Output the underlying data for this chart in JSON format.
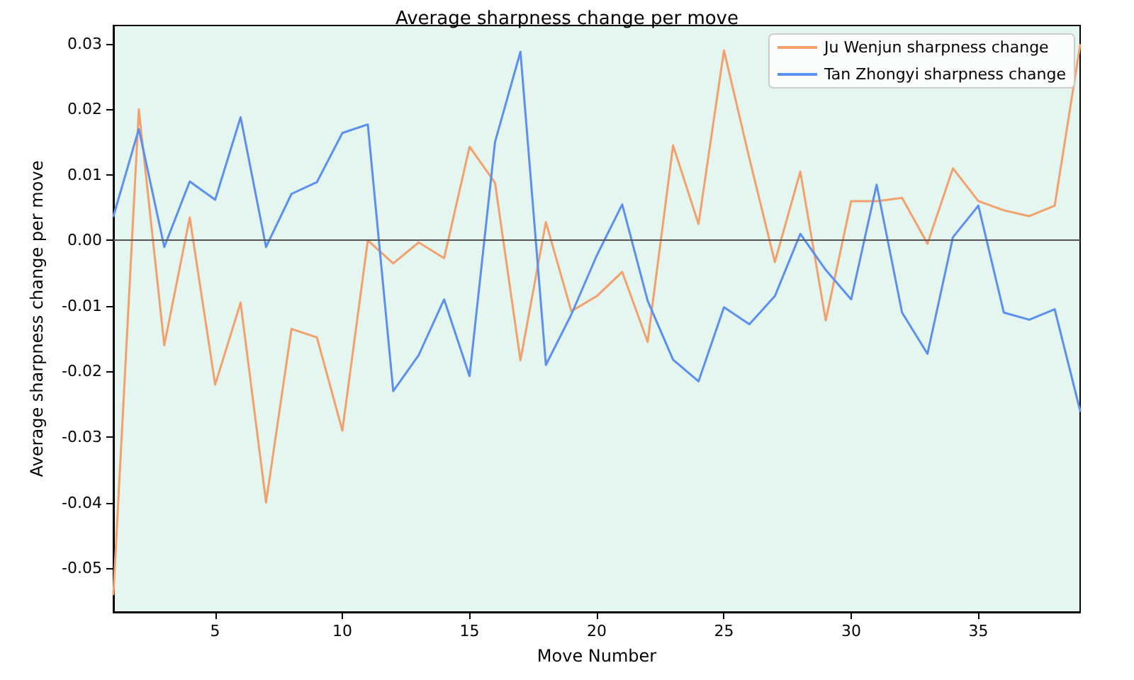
{
  "chart_data": {
    "type": "line",
    "title": "Average sharpness change per move",
    "xlabel": "Move Number",
    "ylabel": "Average sharpness change per move",
    "x": [
      1,
      2,
      3,
      4,
      5,
      6,
      7,
      8,
      9,
      10,
      11,
      12,
      13,
      14,
      15,
      16,
      17,
      18,
      19,
      20,
      21,
      22,
      23,
      24,
      25,
      26,
      27,
      28,
      29,
      30,
      31,
      32,
      33,
      34,
      35,
      36,
      37,
      38,
      39
    ],
    "series": [
      {
        "name": "Ju Wenjun sharpness change",
        "color": "#f4a06c",
        "values": [
          -0.054,
          0.02,
          -0.016,
          0.0035,
          -0.022,
          -0.0095,
          -0.04,
          -0.0135,
          -0.0148,
          -0.029,
          0.0,
          -0.0035,
          -0.0003,
          -0.0027,
          0.0143,
          0.0088,
          -0.0183,
          0.0028,
          -0.0108,
          -0.0085,
          -0.0048,
          -0.0155,
          0.0145,
          0.0025,
          0.029,
          0.0125,
          -0.0033,
          0.0105,
          -0.0122,
          0.006,
          0.006,
          0.0065,
          -0.0005,
          0.011,
          0.006,
          0.0046,
          0.0037,
          0.0053,
          0.0298
        ]
      },
      {
        "name": "Tan Zhongyi sharpness change",
        "color": "#5b8ff0",
        "values": [
          0.0037,
          0.017,
          -0.001,
          0.009,
          0.0062,
          0.0188,
          -0.001,
          0.0071,
          0.0089,
          0.0164,
          0.0177,
          -0.023,
          -0.0175,
          -0.009,
          -0.0207,
          0.015,
          0.0288,
          -0.019,
          -0.0113,
          -0.0023,
          0.0055,
          -0.0092,
          -0.0182,
          -0.0215,
          -0.0102,
          -0.0128,
          -0.0085,
          0.001,
          -0.0045,
          -0.009,
          0.0085,
          -0.011,
          -0.0173,
          0.0005,
          0.0053,
          -0.011,
          -0.0121,
          -0.0105,
          -0.026
        ]
      }
    ],
    "xlim": [
      1,
      39
    ],
    "xticks": [
      5,
      10,
      15,
      20,
      25,
      30,
      35
    ],
    "ylim": [
      -0.0567,
      0.0328
    ],
    "yticks": [
      {
        "value": -0.05,
        "label": "-0.05"
      },
      {
        "value": -0.04,
        "label": "-0.04"
      },
      {
        "value": -0.03,
        "label": "-0.03"
      },
      {
        "value": -0.02,
        "label": "-0.02"
      },
      {
        "value": -0.01,
        "label": "-0.01"
      },
      {
        "value": 0,
        "label": "0.00"
      },
      {
        "value": 0.01,
        "label": "0.01"
      },
      {
        "value": 0.02,
        "label": "0.02"
      },
      {
        "value": 0.03,
        "label": "0.03"
      }
    ],
    "ref_lines": [
      {
        "axis": "y",
        "value": 0,
        "color": "#555555"
      }
    ],
    "legend": "top right",
    "grid": false,
    "marker": "none",
    "line_style": "solid"
  }
}
